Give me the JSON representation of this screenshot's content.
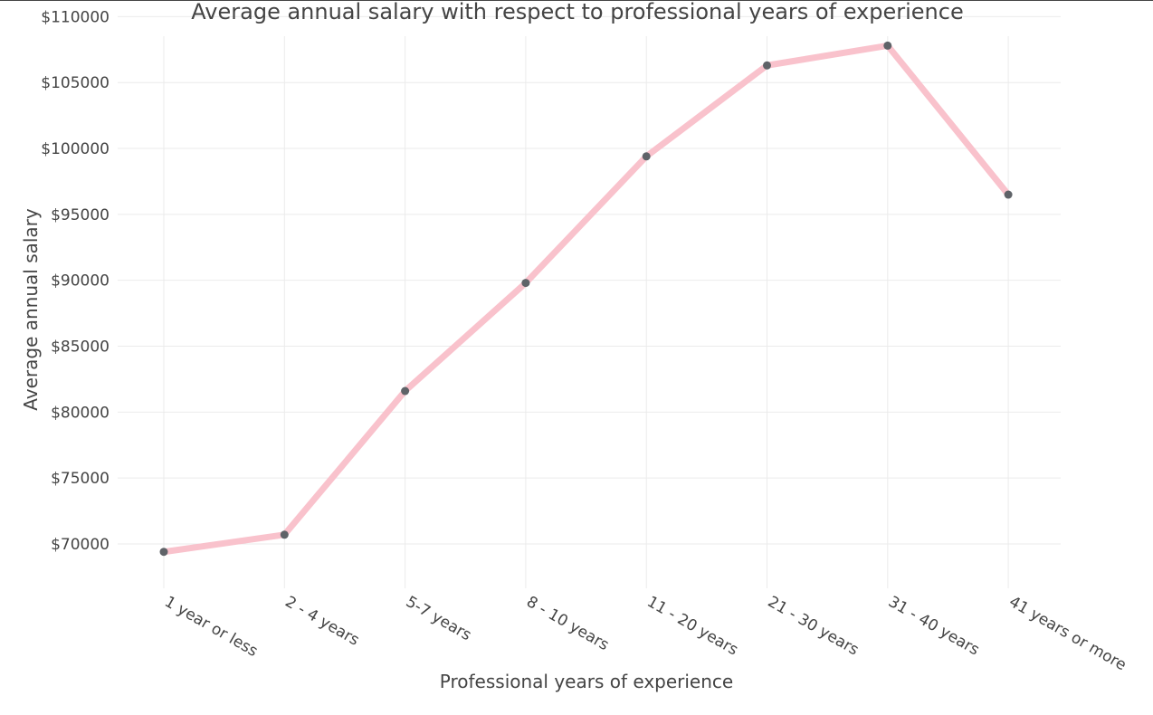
{
  "chart_data": {
    "type": "line",
    "title": "Average annual salary with respect to professional years of experience",
    "xlabel": "Professional years of experience",
    "ylabel": "Average annual salary",
    "categories": [
      "1 year or less",
      "2 - 4 years",
      "5-7 years",
      "8 - 10 years",
      "11 - 20 years",
      "21 - 30 years",
      "31 - 40 years",
      "41 years or more"
    ],
    "values": [
      69400,
      70700,
      81600,
      89800,
      99400,
      106300,
      107800,
      96500
    ],
    "y_ticks": [
      70000,
      75000,
      80000,
      85000,
      90000,
      95000,
      100000,
      105000,
      110000
    ],
    "y_tick_prefix": "$",
    "ylim": [
      66500,
      110500
    ],
    "grid": true,
    "line_color": "#f9c2cc",
    "marker_color": "#5f6368"
  }
}
